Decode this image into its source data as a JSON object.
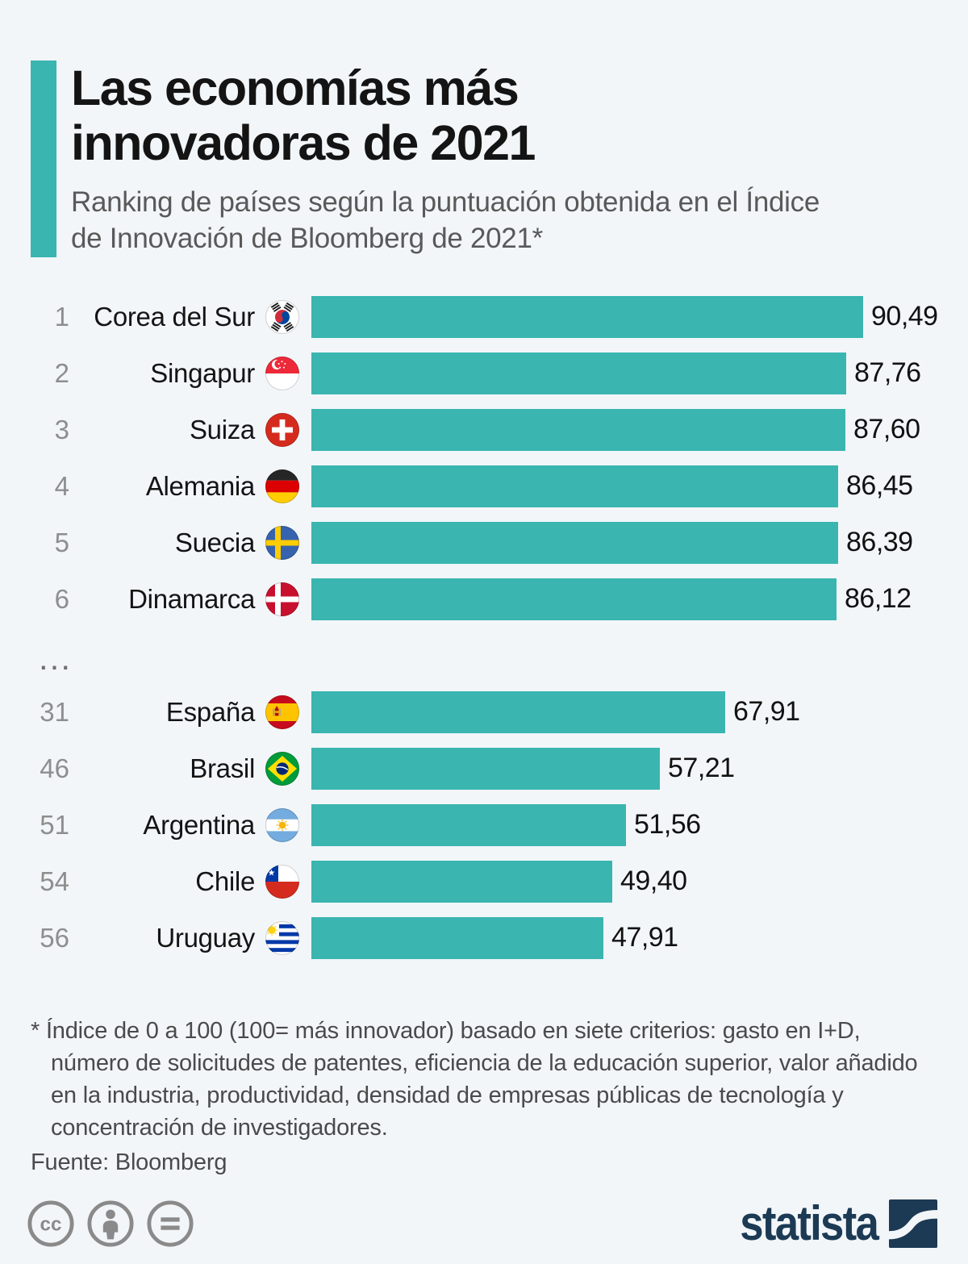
{
  "page": {
    "background_color": "#f2f6f9",
    "accent_color": "#3ab5b0"
  },
  "header": {
    "title": "Las economías más innovadoras de 2021",
    "subtitle": "Ranking de países según la puntuación obtenida en el Índice de Innovación de Bloomberg de 2021*"
  },
  "chart_data": {
    "type": "bar",
    "orientation": "horizontal",
    "title": "Las economías más innovadoras de 2021",
    "subtitle": "Ranking de países según la puntuación obtenida en el Índice de Innovación de Bloomberg de 2021*",
    "xlabel": "",
    "ylabel": "",
    "xlim": [
      0,
      100
    ],
    "bar_color": "#3ab5b0",
    "grid": false,
    "legend": false,
    "value_decimal_separator": ",",
    "separator_label": "...",
    "categories": [
      "Corea del Sur",
      "Singapur",
      "Suiza",
      "Alemania",
      "Suecia",
      "Dinamarca",
      "España",
      "Brasil",
      "Argentina",
      "Chile",
      "Uruguay"
    ],
    "values": [
      90.49,
      87.76,
      87.6,
      86.45,
      86.39,
      86.12,
      67.91,
      57.21,
      51.56,
      49.4,
      47.91
    ],
    "rows": [
      {
        "rank": "1",
        "country": "Corea del Sur",
        "flag": "south-korea",
        "value": 90.49,
        "value_label": "90,49",
        "group": 1
      },
      {
        "rank": "2",
        "country": "Singapur",
        "flag": "singapore",
        "value": 87.76,
        "value_label": "87,76",
        "group": 1
      },
      {
        "rank": "3",
        "country": "Suiza",
        "flag": "switzerland",
        "value": 87.6,
        "value_label": "87,60",
        "group": 1
      },
      {
        "rank": "4",
        "country": "Alemania",
        "flag": "germany",
        "value": 86.45,
        "value_label": "86,45",
        "group": 1
      },
      {
        "rank": "5",
        "country": "Suecia",
        "flag": "sweden",
        "value": 86.39,
        "value_label": "86,39",
        "group": 1
      },
      {
        "rank": "6",
        "country": "Dinamarca",
        "flag": "denmark",
        "value": 86.12,
        "value_label": "86,12",
        "group": 1
      },
      {
        "rank": "31",
        "country": "España",
        "flag": "spain",
        "value": 67.91,
        "value_label": "67,91",
        "group": 2
      },
      {
        "rank": "46",
        "country": "Brasil",
        "flag": "brazil",
        "value": 57.21,
        "value_label": "57,21",
        "group": 2
      },
      {
        "rank": "51",
        "country": "Argentina",
        "flag": "argentina",
        "value": 51.56,
        "value_label": "51,56",
        "group": 2
      },
      {
        "rank": "54",
        "country": "Chile",
        "flag": "chile",
        "value": 49.4,
        "value_label": "49,40",
        "group": 2
      },
      {
        "rank": "56",
        "country": "Uruguay",
        "flag": "uruguay",
        "value": 47.91,
        "value_label": "47,91",
        "group": 2
      }
    ]
  },
  "footnote": {
    "note": "* Índice de 0 a 100 (100= más innovador) basado en siete criterios: gasto en I+D, número de solicitudes de patentes, eficiencia de la educación superior, valor añadido en la industria, productividad, densidad de empresas públicas de tecnología y concentración de investigadores.",
    "source": "Fuente: Bloomberg"
  },
  "footer": {
    "license_icons": [
      "cc-icon",
      "attribution-icon",
      "equals-icon"
    ],
    "license_color": "#8a8a8a",
    "brand_name": "statista",
    "brand_color": "#1c3a54"
  }
}
